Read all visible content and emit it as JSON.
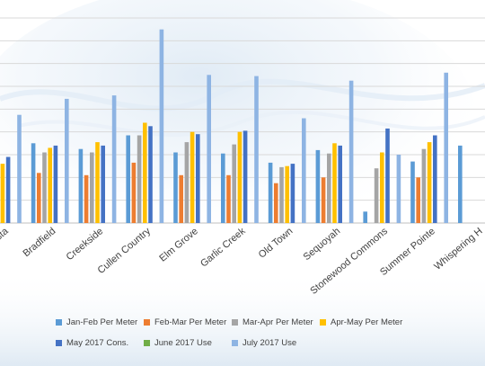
{
  "chart_data": {
    "type": "bar",
    "title": "",
    "xlabel": "",
    "ylabel": "",
    "ylim": [
      0,
      18
    ],
    "grid": true,
    "legend_position": "bottom",
    "categories": [
      "Vista",
      "Bradfield",
      "Creekside",
      "Cullen Country",
      "Elm Grove",
      "Garlic Creek",
      "Old Town",
      "Sequoyah",
      "Stonewood Commons",
      "Summer Pointe",
      "Whispering H"
    ],
    "series": [
      {
        "name": "Jan-Feb Per Meter",
        "color": "#5b9bd5",
        "values": [
          5.4,
          7.0,
          6.5,
          7.7,
          6.2,
          6.1,
          5.3,
          6.4,
          1.0,
          5.4,
          6.8
        ]
      },
      {
        "name": "Feb-Mar Per Meter",
        "color": "#ed7d31",
        "values": [
          3.5,
          4.4,
          4.2,
          5.3,
          4.2,
          4.2,
          3.5,
          4.0,
          null,
          4.0,
          null
        ]
      },
      {
        "name": "Mar-Apr Per Meter",
        "color": "#a5a5a5",
        "values": [
          4.6,
          6.2,
          6.2,
          7.7,
          7.1,
          6.9,
          4.9,
          6.1,
          4.8,
          6.5,
          null
        ]
      },
      {
        "name": "Apr-May Per Meter",
        "color": "#ffc000",
        "values": [
          5.2,
          6.6,
          7.1,
          8.8,
          8.0,
          8.0,
          5.0,
          7.0,
          6.2,
          7.1,
          null
        ]
      },
      {
        "name": "May 2017 Cons.",
        "color": "#4472c4",
        "values": [
          5.8,
          6.8,
          6.8,
          8.5,
          7.8,
          8.1,
          5.2,
          6.8,
          8.3,
          7.7,
          null
        ]
      },
      {
        "name": "June 2017 Use",
        "color": "#70ad47",
        "values": [
          null,
          null,
          null,
          null,
          null,
          null,
          null,
          null,
          null,
          null,
          null
        ]
      },
      {
        "name": "July 2017 Use",
        "color": "#8eb4e3",
        "values": [
          9.5,
          10.9,
          11.2,
          17.0,
          13.0,
          12.9,
          9.2,
          12.5,
          6.0,
          13.2,
          null
        ]
      }
    ]
  }
}
